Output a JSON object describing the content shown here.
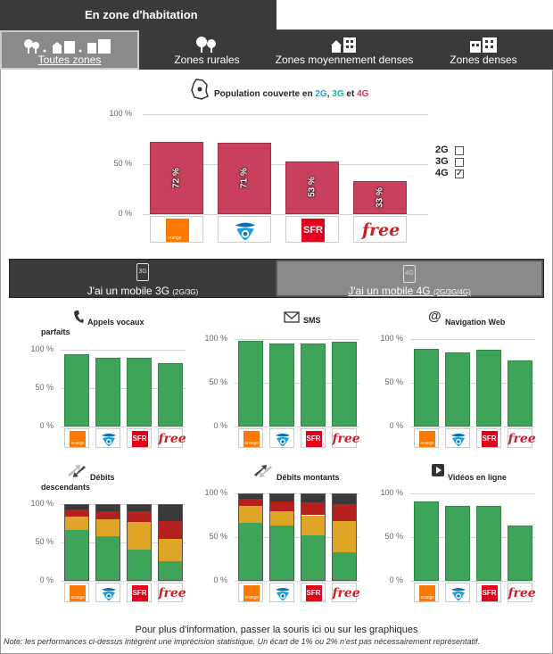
{
  "header": {
    "title": "En zone d'habitation"
  },
  "zones": {
    "tabs": [
      {
        "label": "Toutes zones",
        "icon": "trees-houses-buildings-icon",
        "active": true
      },
      {
        "label": "Zones rurales",
        "icon": "trees-icon",
        "active": false
      },
      {
        "label": "Zones moyennement denses",
        "icon": "house-building-icon",
        "active": false
      },
      {
        "label": "Zones denses",
        "icon": "buildings-icon",
        "active": false
      }
    ]
  },
  "coverage": {
    "title_prefix": "Population couverte en",
    "t2g": "2G",
    "sep": ",",
    "t3g": "3G",
    "and": "et",
    "t4g": "4G",
    "icon": "france-map-icon",
    "legend": [
      {
        "label": "2G",
        "checked": false
      },
      {
        "label": "3G",
        "checked": false
      },
      {
        "label": "4G",
        "checked": true
      }
    ]
  },
  "operators": {
    "orange": "orange",
    "sfr": "SFR",
    "free": "free",
    "bouygues_icon": "bouygues-logo-icon"
  },
  "mobile": {
    "tab_3g": "J'ai un mobile 3G",
    "tab_3g_sub": "(2G/3G)",
    "tab_3g_icon_text": "3G",
    "tab_4g": "J'ai un mobile 4G",
    "tab_4g_sub": "(2G/3G/4G)",
    "tab_4g_icon_text": "4G"
  },
  "charts": {
    "voice_title_1": "Appels vocaux",
    "voice_title_2": "parfaits",
    "sms_title": "SMS",
    "web_title": "Navigation Web",
    "down_title_1": "Débits",
    "down_title_2": "descendants",
    "up_title": "Débits montants",
    "video_title": "Vidéos en ligne"
  },
  "footer": {
    "info_before": "Pour plus d'information, passer la souris",
    "info_link": "ici",
    "info_after": "ou sur les graphiques",
    "note": "Note: les performances ci-dessus intègrent une imprécision statistique. Un écart de 1% ou 2% n'est pas nécessairement représentatif."
  },
  "chart_data": [
    {
      "type": "bar",
      "title": "Population couverte en 2G, 3G et 4G",
      "categories": [
        "Orange",
        "Bouygues",
        "SFR",
        "Free"
      ],
      "values": [
        72,
        71,
        53,
        33
      ],
      "value_labels": [
        "72 %",
        "71 %",
        "53 %",
        "33 %"
      ],
      "yticks": [
        "100 %",
        "50 %",
        "0 %"
      ],
      "ylim": [
        0,
        100
      ],
      "color": "#c9405e"
    },
    {
      "type": "bar",
      "title": "Appels vocaux parfaits",
      "categories": [
        "Orange",
        "Bouygues",
        "SFR",
        "Free"
      ],
      "values": [
        94,
        89,
        90,
        83
      ],
      "yticks": [
        "100 %",
        "50 %",
        "0 %"
      ],
      "ylim": [
        0,
        100
      ],
      "color": "#3da45a"
    },
    {
      "type": "bar",
      "title": "SMS",
      "categories": [
        "Orange",
        "Bouygues",
        "SFR",
        "Free"
      ],
      "values": [
        98,
        95,
        95,
        97
      ],
      "yticks": [
        "100 %",
        "50 %",
        "0 %"
      ],
      "ylim": [
        0,
        100
      ],
      "color": "#3da45a"
    },
    {
      "type": "bar",
      "title": "Navigation Web",
      "categories": [
        "Orange",
        "Bouygues",
        "SFR",
        "Free"
      ],
      "values": [
        89,
        85,
        88,
        76
      ],
      "yticks": [
        "100 %",
        "50 %",
        "0 %"
      ],
      "ylim": [
        0,
        100
      ],
      "color": "#3da45a"
    },
    {
      "type": "bar",
      "stacked": true,
      "title": "Débits descendants",
      "categories": [
        "Orange",
        "Bouygues",
        "SFR",
        "Free"
      ],
      "yticks": [
        "100 %",
        "50 %",
        "0 %"
      ],
      "ylim": [
        0,
        100
      ],
      "series": [
        {
          "color": "#3da45a",
          "values": [
            65,
            57,
            40,
            25
          ]
        },
        {
          "color": "#e0a526",
          "values": [
            18,
            22,
            36,
            28
          ]
        },
        {
          "color": "#b3201d",
          "values": [
            9,
            11,
            13,
            24
          ]
        },
        {
          "color": "#3a3a3a",
          "values": [
            8,
            10,
            11,
            23
          ]
        }
      ]
    },
    {
      "type": "bar",
      "stacked": true,
      "title": "Débits montants",
      "categories": [
        "Orange",
        "Bouygues",
        "SFR",
        "Free"
      ],
      "yticks": [
        "100 %",
        "50 %",
        "0 %"
      ],
      "ylim": [
        0,
        100
      ],
      "series": [
        {
          "color": "#3da45a",
          "values": [
            65,
            62,
            51,
            32
          ]
        },
        {
          "color": "#e0a526",
          "values": [
            20,
            17,
            23,
            35
          ]
        },
        {
          "color": "#b3201d",
          "values": [
            8,
            11,
            15,
            20
          ]
        },
        {
          "color": "#3a3a3a",
          "values": [
            7,
            10,
            11,
            13
          ]
        }
      ]
    },
    {
      "type": "bar",
      "title": "Vidéos en ligne",
      "categories": [
        "Orange",
        "Bouygues",
        "SFR",
        "Free"
      ],
      "values": [
        91,
        86,
        86,
        63
      ],
      "yticks": [
        "100 %",
        "50 %",
        "0 %"
      ],
      "ylim": [
        0,
        100
      ],
      "color": "#3da45a"
    }
  ]
}
